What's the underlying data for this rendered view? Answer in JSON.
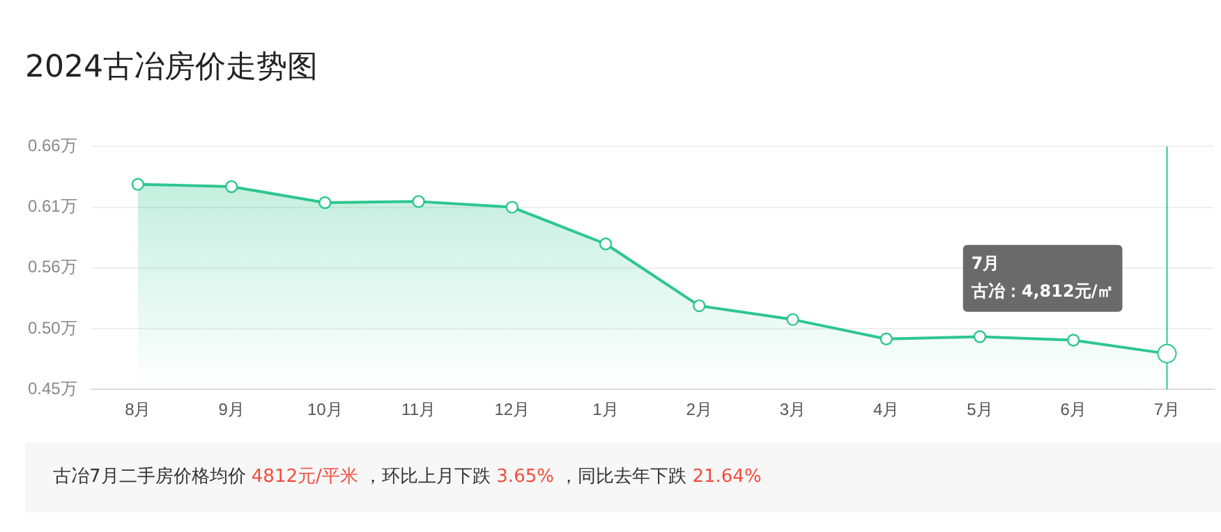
{
  "chart_data": {
    "type": "area",
    "title": "2024古冶房价走势图",
    "categories": [
      "8月",
      "9月",
      "10月",
      "11月",
      "12月",
      "1月",
      "2月",
      "3月",
      "4月",
      "5月",
      "6月",
      "7月"
    ],
    "series": [
      {
        "name": "古冶",
        "color": "#2dc68f",
        "values": [
          0.629,
          0.627,
          0.613,
          0.614,
          0.609,
          0.577,
          0.523,
          0.511,
          0.494,
          0.496,
          0.493,
          0.4812
        ]
      }
    ],
    "ylim": [
      0.45,
      0.662
    ],
    "yticks": [
      {
        "value": 0.45,
        "label": "0.45万"
      },
      {
        "value": 0.503,
        "label": "0.50万"
      },
      {
        "value": 0.556,
        "label": "0.56万"
      },
      {
        "value": 0.609,
        "label": "0.61万"
      },
      {
        "value": 0.662,
        "label": "0.66万"
      }
    ],
    "grid": "y",
    "marker": "circle",
    "legend": false,
    "ref_lines": [
      {
        "axis": "x",
        "value": "7月",
        "color": "#2dc68f"
      }
    ],
    "annotations": [
      "：4,812元/㎡",
      "古冶7月二手房价格均价 4812元/平米 ，环比上月下跌 3.65% ，同比去年下跌 21.64%"
    ]
  }
}
